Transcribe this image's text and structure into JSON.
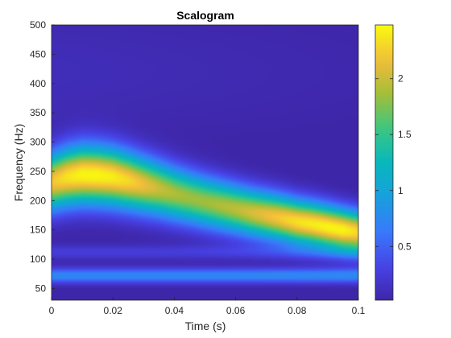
{
  "chart_data": {
    "type": "heatmap",
    "title": "Scalogram",
    "xlabel": "Time (s)",
    "ylabel": "Frequency (Hz)",
    "xlim": [
      0,
      0.1
    ],
    "ylim": [
      30,
      500
    ],
    "xticks": [
      0,
      0.02,
      0.04,
      0.06,
      0.08,
      0.1
    ],
    "xtick_labels": [
      "0",
      "0.02",
      "0.04",
      "0.06",
      "0.08",
      "0.1"
    ],
    "yticks": [
      50,
      100,
      150,
      200,
      250,
      300,
      350,
      400,
      450,
      500
    ],
    "ytick_labels": [
      "50",
      "100",
      "150",
      "200",
      "250",
      "300",
      "350",
      "400",
      "450",
      "500"
    ],
    "colormap": "parula",
    "colorbar": {
      "clim": [
        0.02,
        2.48
      ],
      "ticks": [
        0.5,
        1,
        1.5,
        2
      ],
      "tick_labels": [
        "0.5",
        "1",
        "1.5",
        "2"
      ]
    },
    "grid": false,
    "ridge": {
      "time": [
        0,
        0.005,
        0.01,
        0.015,
        0.02,
        0.025,
        0.03,
        0.035,
        0.04,
        0.045,
        0.05,
        0.055,
        0.06,
        0.065,
        0.07,
        0.075,
        0.08,
        0.085,
        0.09,
        0.095,
        0.1
      ],
      "frequency": [
        232,
        240,
        244,
        243,
        240,
        234,
        227,
        220,
        212,
        205,
        198,
        192,
        186,
        180,
        175,
        170,
        164,
        160,
        155,
        150,
        146
      ],
      "magnitude": [
        2.2,
        2.35,
        2.45,
        2.45,
        2.4,
        2.3,
        2.15,
        2.0,
        1.9,
        1.85,
        1.85,
        1.9,
        1.95,
        2.05,
        2.15,
        2.25,
        2.35,
        2.4,
        2.45,
        2.45,
        2.3
      ]
    },
    "secondary_bands": [
      {
        "frequency": 72,
        "magnitude": 0.75
      },
      {
        "frequency": 112,
        "magnitude": 0.25
      }
    ]
  }
}
